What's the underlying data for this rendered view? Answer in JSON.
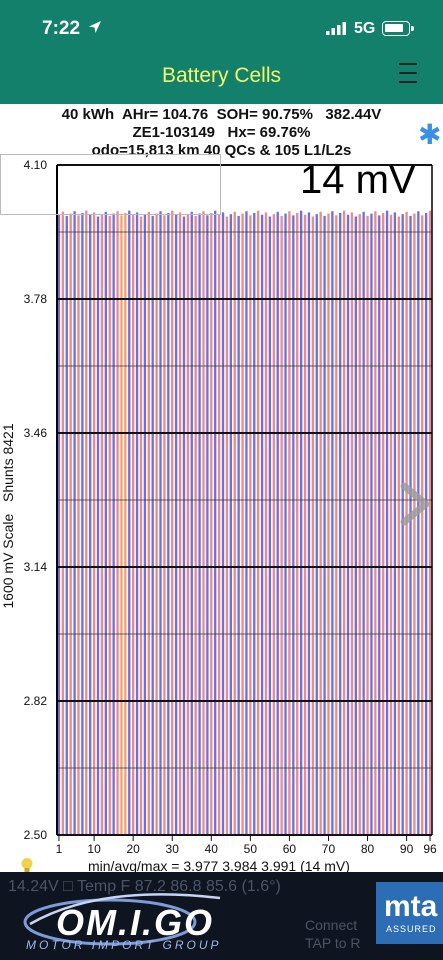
{
  "status": {
    "time": "7:22",
    "network": "5G"
  },
  "nav": {
    "title": "Battery Cells"
  },
  "header": {
    "line1": "40 kWh  AHr= 104.76  SOH= 90.75%   382.44V",
    "line2": "ZE1-103149   Hx= 69.76%",
    "line3": "odo=15,813 km 40 QCs & 105 L1/L2s"
  },
  "scale_label": "14 mV",
  "y_axis_title": "1600 mV Scale   Shunts 8421",
  "stats": "min/avg/max = 3.977 3.984 3.991  (14 mV)",
  "banner": {
    "ghost_line": "14.24V  □   Temp F 87.2  86.8  85.6  (1.6°)",
    "ghost_right_1": "Connect",
    "ghost_right_2": "TAP to R",
    "logo": "OM.I.GO",
    "logo_sub": "MOTOR IMPORT GROUP",
    "badge": "mta",
    "badge_sub": "ASSURED"
  },
  "colors": {
    "topbar": "#13806c",
    "title": "#f4f76a",
    "odd_cell": "#6f6fe0",
    "even_cell": "#ee8a8a",
    "star": "#3a8fe8"
  },
  "chart_data": {
    "type": "bar",
    "x_range": [
      1,
      96
    ],
    "x_ticks": [
      "1",
      "10",
      "20",
      "30",
      "40",
      "50",
      "60",
      "70",
      "80",
      "90",
      "96"
    ],
    "y_ticks": [
      "4.10",
      "3.78",
      "3.46",
      "3.14",
      "2.82",
      "2.50"
    ],
    "ylim": [
      2.5,
      4.1
    ],
    "values_min": 3.977,
    "values_avg": 3.984,
    "values_max": 3.991,
    "series_colors": [
      "#6f6fe0",
      "#ee8a8a"
    ],
    "shunt_cells": [
      17,
      18
    ]
  }
}
